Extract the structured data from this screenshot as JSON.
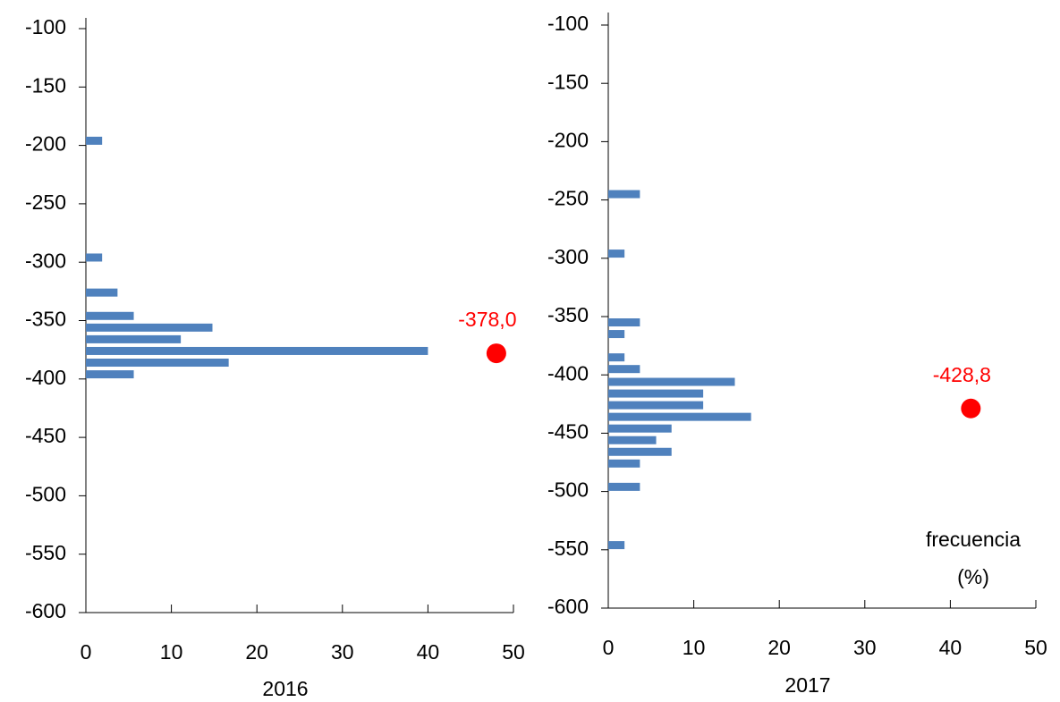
{
  "chart_data": [
    {
      "type": "bar",
      "orientation": "horizontal",
      "xlabel": "2016",
      "color": "#4f81bd",
      "y": [
        -196,
        -296,
        -326,
        -346,
        -356,
        -366,
        -376,
        -386,
        -396
      ],
      "values": [
        1.9,
        1.9,
        3.7,
        5.6,
        14.8,
        11.1,
        40.0,
        16.7,
        5.6
      ],
      "xlim": [
        0,
        50
      ],
      "xticks": [
        0,
        10,
        20,
        30,
        40,
        50
      ],
      "ylim": [
        -600,
        -100
      ],
      "yticks": [
        -100,
        -150,
        -200,
        -250,
        -300,
        -350,
        -400,
        -450,
        -500,
        -550,
        -600
      ],
      "marker": {
        "x": 48,
        "y": -378,
        "label": "-378,0",
        "color": "#ff0000"
      }
    },
    {
      "type": "bar",
      "orientation": "horizontal",
      "xlabel": "2017",
      "color": "#4f81bd",
      "y": [
        -245,
        -296,
        -355,
        -365,
        -385,
        -395,
        -406,
        -416,
        -426,
        -436,
        -446,
        -456,
        -466,
        -476,
        -496,
        -546
      ],
      "values": [
        3.7,
        1.9,
        3.7,
        1.9,
        1.9,
        3.7,
        14.8,
        11.1,
        11.1,
        16.7,
        7.4,
        5.6,
        7.4,
        3.7,
        3.7,
        1.9
      ],
      "xlim": [
        0,
        50
      ],
      "xticks": [
        0,
        10,
        20,
        30,
        40,
        50
      ],
      "ylim": [
        -600,
        -100
      ],
      "yticks": [
        -100,
        -150,
        -200,
        -250,
        -300,
        -350,
        -400,
        -450,
        -500,
        -550,
        -600
      ],
      "marker": {
        "x": 42.4,
        "y": -428.8,
        "label": "-428,8",
        "color": "#ff0000"
      },
      "annotation": [
        "frecuencia",
        "(%)"
      ]
    }
  ]
}
